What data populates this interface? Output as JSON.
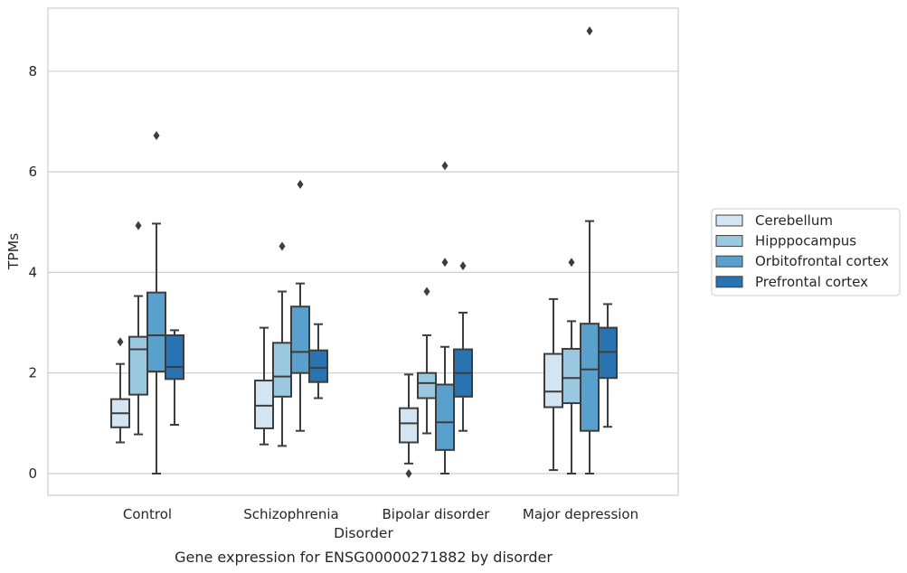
{
  "chart_data": {
    "type": "box",
    "caption": "Gene expression for ENSG00000271882 by disorder",
    "xlabel": "Disorder",
    "ylabel": "TPMs",
    "ylim": [
      -0.4,
      9.3
    ],
    "yticks": [
      0,
      2,
      4,
      6,
      8
    ],
    "grid": "horizontal",
    "legend_position": "right",
    "categories": [
      "Control",
      "Schizophrenia",
      "Bipolar disorder",
      "Major depression"
    ],
    "series": [
      {
        "name": "Cerebellum",
        "color": "#d3e4f3",
        "boxes": [
          {
            "whisker_low": 0.62,
            "q1": 0.92,
            "median": 1.2,
            "q3": 1.48,
            "whisker_high": 2.18,
            "outliers": [
              2.62
            ]
          },
          {
            "whisker_low": 0.58,
            "q1": 0.9,
            "median": 1.35,
            "q3": 1.85,
            "whisker_high": 2.9,
            "outliers": []
          },
          {
            "whisker_low": 0.2,
            "q1": 0.62,
            "median": 1.0,
            "q3": 1.3,
            "whisker_high": 1.97,
            "outliers": [
              0.0
            ]
          },
          {
            "whisker_low": 0.07,
            "q1": 1.32,
            "median": 1.63,
            "q3": 2.38,
            "whisker_high": 3.47,
            "outliers": []
          }
        ]
      },
      {
        "name": "Hipppocampus",
        "color": "#9ac8e0",
        "boxes": [
          {
            "whisker_low": 0.78,
            "q1": 1.57,
            "median": 2.47,
            "q3": 2.72,
            "whisker_high": 3.53,
            "outliers": [
              4.93
            ]
          },
          {
            "whisker_low": 0.55,
            "q1": 1.53,
            "median": 1.93,
            "q3": 2.6,
            "whisker_high": 3.62,
            "outliers": [
              4.52
            ]
          },
          {
            "whisker_low": 0.8,
            "q1": 1.5,
            "median": 1.8,
            "q3": 2.0,
            "whisker_high": 2.75,
            "outliers": [
              3.62
            ]
          },
          {
            "whisker_low": 0.0,
            "q1": 1.4,
            "median": 1.9,
            "q3": 2.48,
            "whisker_high": 3.03,
            "outliers": [
              4.2
            ]
          }
        ]
      },
      {
        "name": "Orbitofrontal cortex",
        "color": "#5aa0cd",
        "boxes": [
          {
            "whisker_low": 0.0,
            "q1": 2.03,
            "median": 2.75,
            "q3": 3.6,
            "whisker_high": 4.97,
            "outliers": [
              6.72
            ]
          },
          {
            "whisker_low": 0.85,
            "q1": 2.0,
            "median": 2.42,
            "q3": 3.32,
            "whisker_high": 3.78,
            "outliers": [
              5.75
            ]
          },
          {
            "whisker_low": 0.0,
            "q1": 0.47,
            "median": 1.02,
            "q3": 1.77,
            "whisker_high": 2.52,
            "outliers": [
              4.2,
              6.12
            ]
          },
          {
            "whisker_low": 0.0,
            "q1": 0.85,
            "median": 2.07,
            "q3": 2.98,
            "whisker_high": 5.02,
            "outliers": [
              8.8
            ]
          }
        ]
      },
      {
        "name": "Prefrontal cortex",
        "color": "#2a73b2",
        "boxes": [
          {
            "whisker_low": 0.97,
            "q1": 1.88,
            "median": 2.12,
            "q3": 2.75,
            "whisker_high": 2.85,
            "outliers": []
          },
          {
            "whisker_low": 1.5,
            "q1": 1.82,
            "median": 2.1,
            "q3": 2.45,
            "whisker_high": 2.97,
            "outliers": []
          },
          {
            "whisker_low": 0.85,
            "q1": 1.53,
            "median": 2.0,
            "q3": 2.47,
            "whisker_high": 3.2,
            "outliers": [
              4.13
            ]
          },
          {
            "whisker_low": 0.93,
            "q1": 1.9,
            "median": 2.42,
            "q3": 2.9,
            "whisker_high": 3.37,
            "outliers": []
          }
        ]
      }
    ]
  }
}
